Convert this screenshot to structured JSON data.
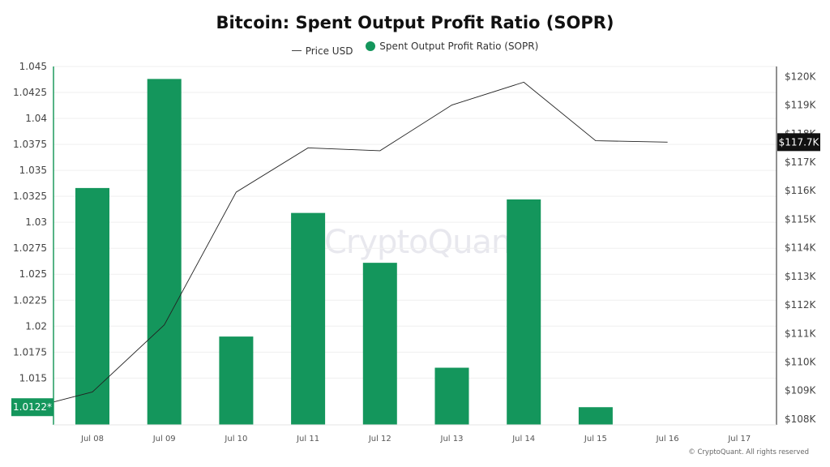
{
  "title": "Bitcoin: Spent Output Profit Ratio (SOPR)",
  "legend": {
    "price_label": "Price USD",
    "sopr_label": "Spent Output Profit Ratio (SOPR)"
  },
  "watermark": "CryptoQuant",
  "copyright": "© CryptoQuant. All rights reserved",
  "colors": {
    "bar": "#14965c",
    "price_line": "#222222",
    "left_axis": "#1f9a5e",
    "price_badge_bg": "#111111",
    "sopr_badge_bg": "#14965c"
  },
  "chart_data": {
    "type": "bar",
    "categories": [
      "Jul 08",
      "Jul 09",
      "Jul 10",
      "Jul 11",
      "Jul 12",
      "Jul 13",
      "Jul 14",
      "Jul 15",
      "Jul 16",
      "Jul 17"
    ],
    "series": [
      {
        "name": "Spent Output Profit Ratio (SOPR)",
        "type": "bar",
        "axis": "left",
        "values": [
          1.0333,
          1.0438,
          1.019,
          1.0309,
          1.0261,
          1.016,
          1.0322,
          1.0122,
          null,
          null
        ]
      },
      {
        "name": "Price USD",
        "type": "line",
        "axis": "right",
        "values": [
          108950,
          111300,
          115950,
          117500,
          117400,
          119000,
          119800,
          117750,
          117700,
          null
        ]
      }
    ],
    "price_line_start": 108600,
    "ylim_left": [
      1.0105,
      1.045
    ],
    "yticks_left": [
      "1.045",
      "1.0425",
      "1.04",
      "1.0375",
      "1.035",
      "1.0325",
      "1.03",
      "1.0275",
      "1.025",
      "1.0225",
      "1.02",
      "1.0175",
      "1.015"
    ],
    "ylim_right": [
      107800,
      120350
    ],
    "yticks_right": [
      "$120K",
      "$119K",
      "$118K",
      "$117K",
      "$116K",
      "$115K",
      "$114K",
      "$113K",
      "$112K",
      "$111K",
      "$110K",
      "$109K",
      "$108K"
    ],
    "last_value_labels": {
      "sopr": "1.0122*",
      "price": "$117.7K"
    },
    "grid": true
  }
}
